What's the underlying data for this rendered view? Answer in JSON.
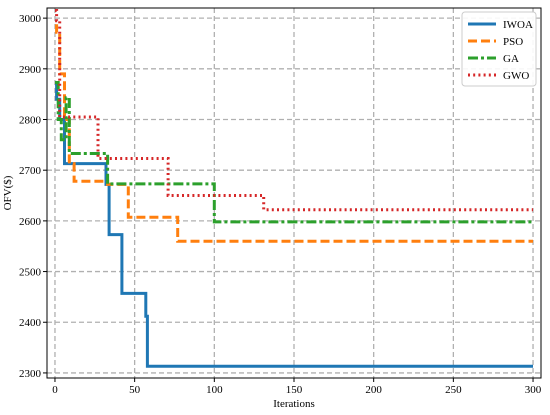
{
  "chart_data": {
    "type": "line",
    "title": "",
    "xlabel": "Iterations",
    "ylabel": "OFV($)",
    "xlim": [
      -5,
      305
    ],
    "ylim": [
      2290,
      3020
    ],
    "xticks": [
      0,
      50,
      100,
      150,
      200,
      250,
      300
    ],
    "yticks": [
      2300,
      2400,
      2500,
      2600,
      2700,
      2800,
      2900,
      3000
    ],
    "grid": true,
    "legend_position": "top-right",
    "series": [
      {
        "name": "IWOA",
        "color": "#1f77b4",
        "style": "solid",
        "x": [
          0,
          1,
          1,
          3,
          3,
          6,
          6,
          32,
          32,
          34,
          34,
          42,
          42,
          57,
          57,
          58,
          58,
          300
        ],
        "y": [
          2870,
          2870,
          2840,
          2840,
          2800,
          2800,
          2713,
          2713,
          2672,
          2672,
          2573,
          2573,
          2457,
          2457,
          2412,
          2412,
          2313,
          2313
        ]
      },
      {
        "name": "PSO",
        "color": "#ff7f0e",
        "style": "dashed",
        "x": [
          0,
          1,
          1,
          3,
          3,
          6,
          6,
          9,
          9,
          12,
          12,
          33,
          33,
          46,
          46,
          77,
          77,
          300
        ],
        "y": [
          2985,
          2985,
          2972,
          2972,
          2890,
          2890,
          2800,
          2800,
          2713,
          2713,
          2678,
          2678,
          2672,
          2672,
          2607,
          2607,
          2560,
          2560
        ]
      },
      {
        "name": "GA",
        "color": "#2ca02c",
        "style": "dashdot",
        "x": [
          0,
          2,
          2,
          4,
          4,
          7,
          7,
          9,
          9,
          12,
          12,
          33,
          33,
          100,
          100,
          300
        ],
        "y": [
          2873,
          2873,
          2800,
          2800,
          2760,
          2760,
          2843,
          2843,
          2733,
          2733,
          2733,
          2733,
          2673,
          2673,
          2598,
          2598
        ]
      },
      {
        "name": "GWO",
        "color": "#d62728",
        "style": "dotted",
        "x": [
          0,
          1,
          1,
          3,
          3,
          27,
          27,
          71,
          71,
          131,
          131,
          300
        ],
        "y": [
          3015,
          3015,
          2995,
          2995,
          2805,
          2805,
          2723,
          2723,
          2650,
          2650,
          2622,
          2622
        ]
      }
    ]
  }
}
